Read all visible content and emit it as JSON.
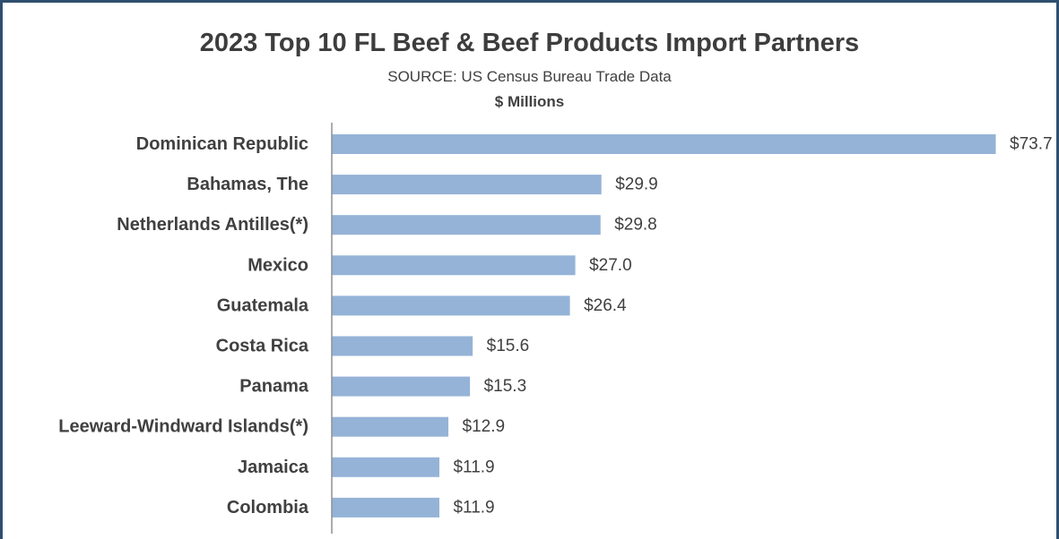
{
  "chart_data": {
    "type": "bar",
    "orientation": "horizontal",
    "title": "2023 Top 10 FL Beef & Beef Products Import Partners",
    "subtitle": "SOURCE: US Census Bureau Trade Data",
    "unit_label": "$ Millions",
    "categories": [
      "Dominican Republic",
      "Bahamas, The",
      "Netherlands Antilles(*)",
      "Mexico",
      "Guatemala",
      "Costa Rica",
      "Panama",
      "Leeward-Windward Islands(*)",
      "Jamaica",
      "Colombia"
    ],
    "values": [
      73.7,
      29.9,
      29.8,
      27.0,
      26.4,
      15.6,
      15.3,
      12.9,
      11.9,
      11.9
    ],
    "data_labels": [
      "$73.7",
      "$29.9",
      "$29.8",
      "$27.0",
      "$26.4",
      "$15.6",
      "$15.3",
      "$12.9",
      "$11.9",
      "$11.9"
    ],
    "bar_color": "#95b3d7",
    "grid": false,
    "legend": "none"
  }
}
